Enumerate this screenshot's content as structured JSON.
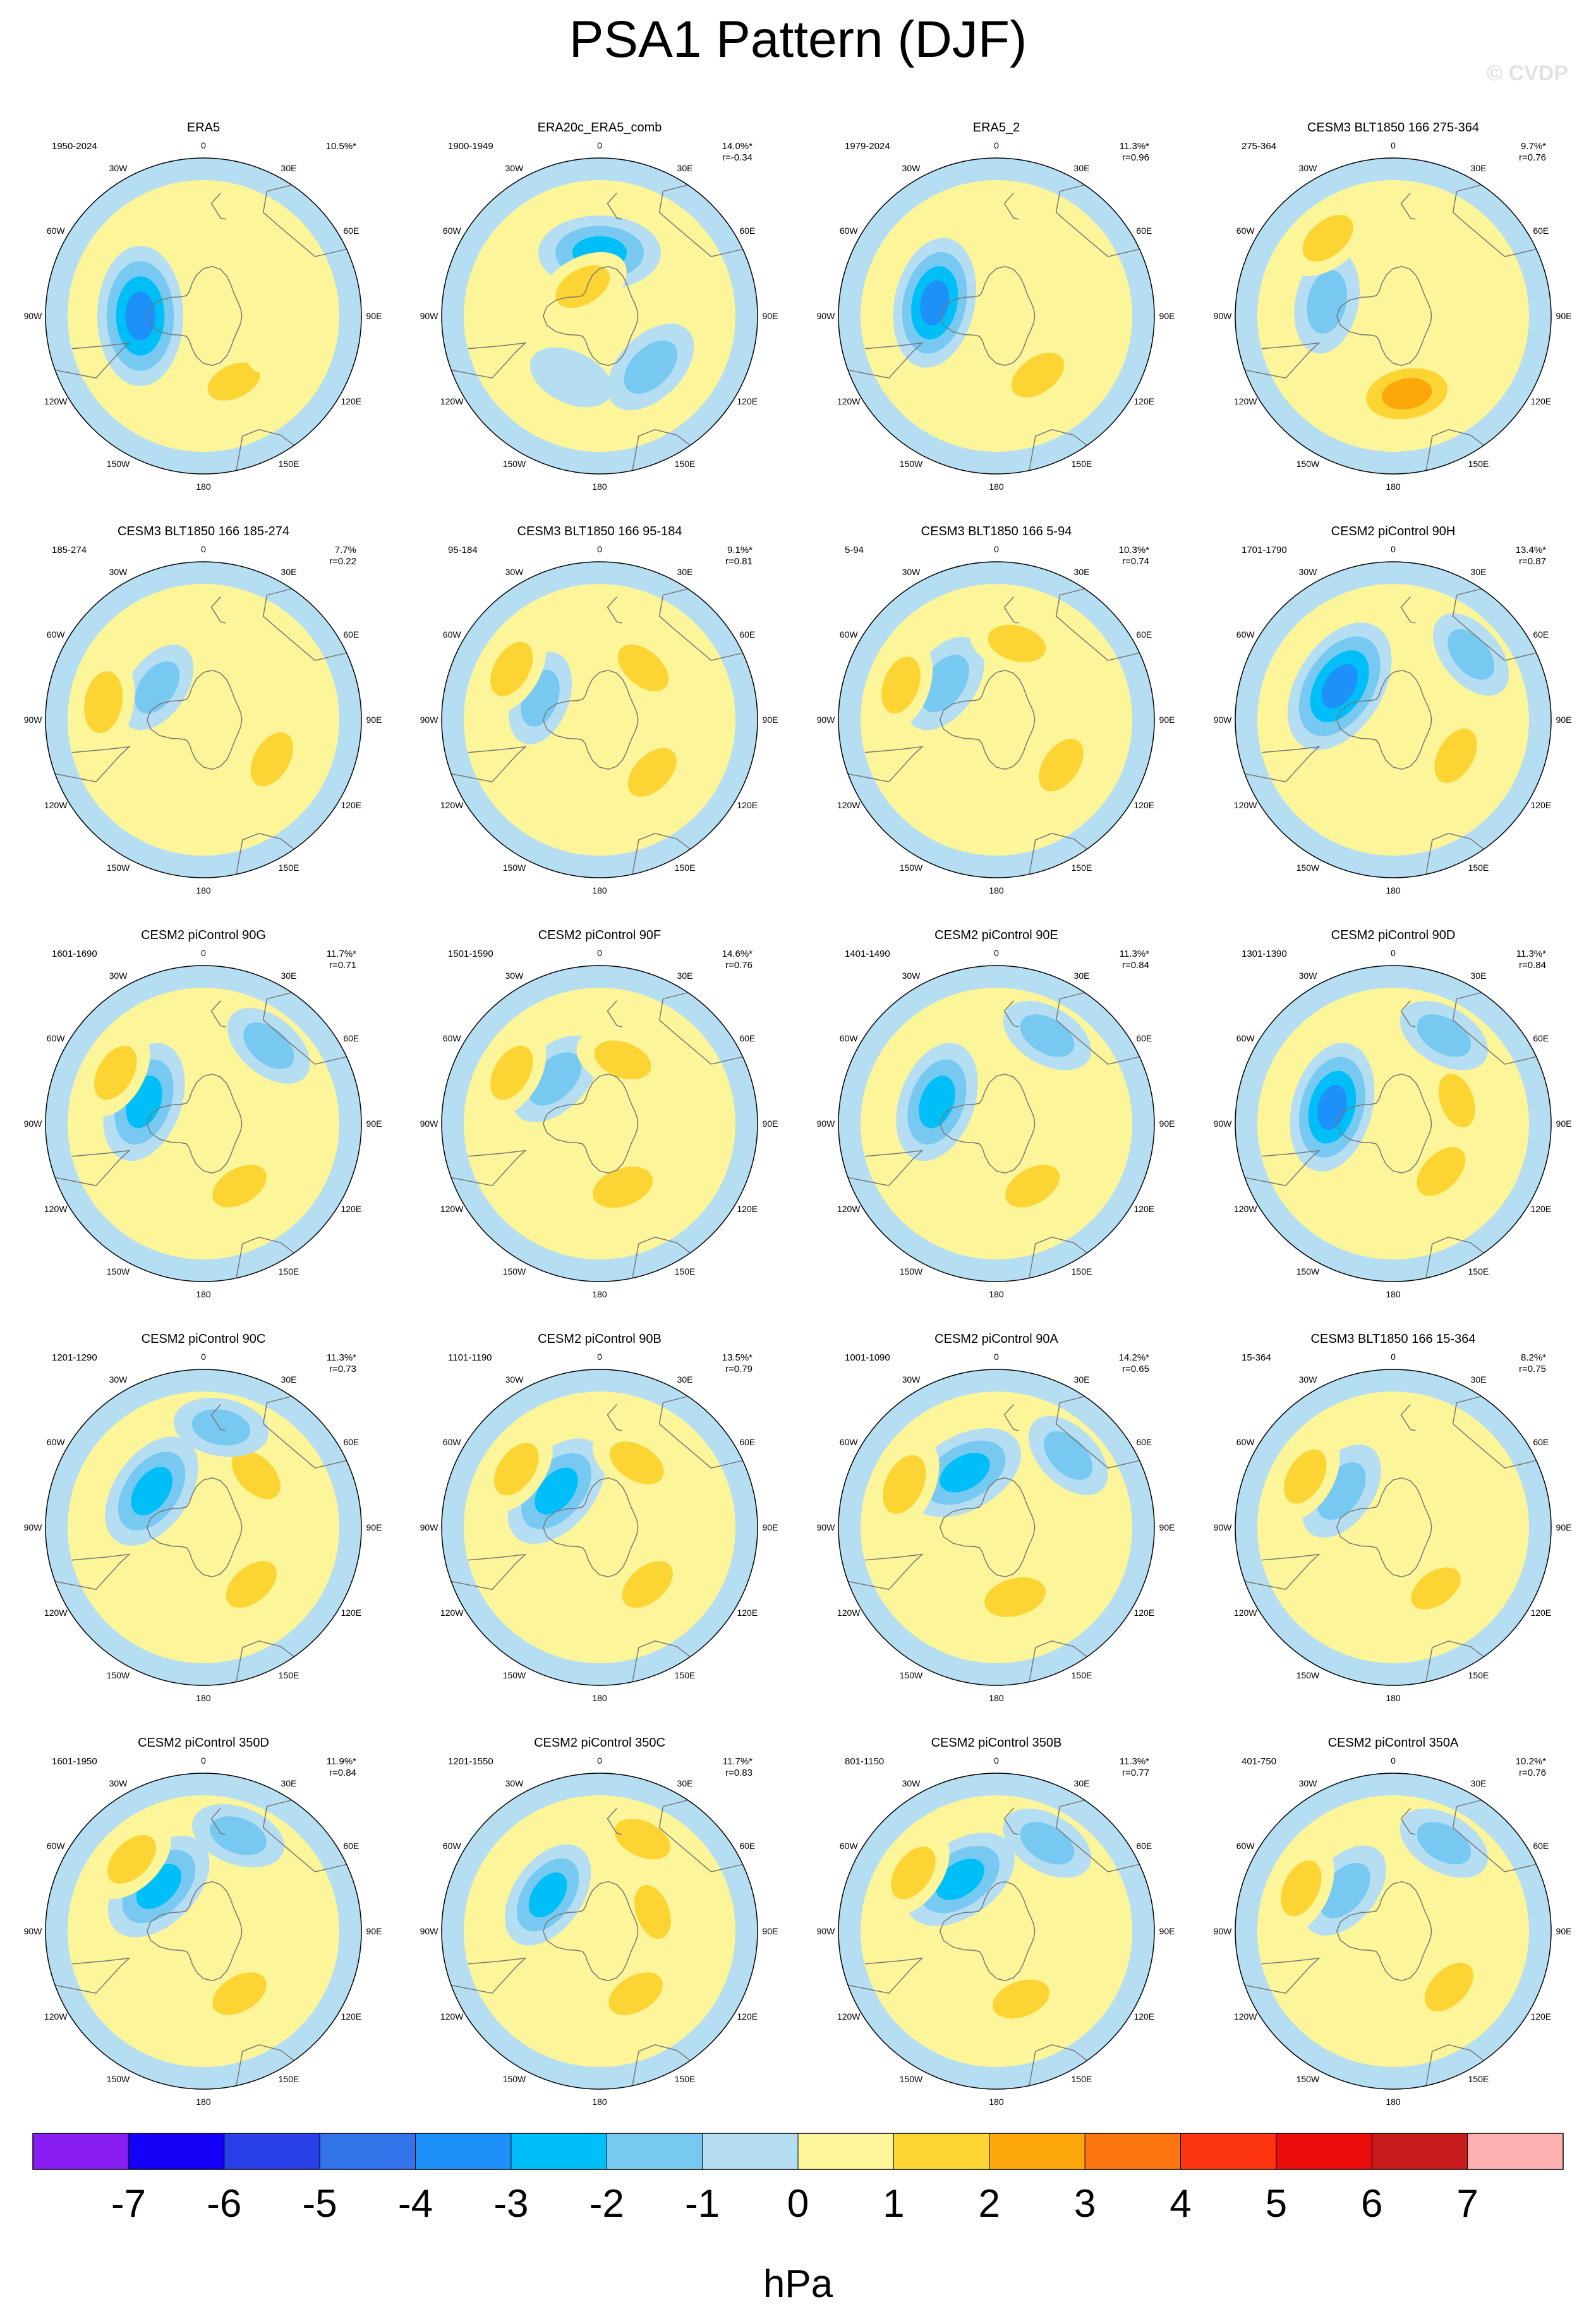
{
  "figure": {
    "title": "PSA1 Pattern (DJF)",
    "watermark": "© CVDP",
    "units": "hPa",
    "land_outline_color": "#777777",
    "label_positions": {
      "left": "start-year label",
      "right": "pattern stats label"
    }
  },
  "colorbar": {
    "levels": [
      -7,
      -6,
      -5,
      -4,
      -3,
      -2,
      -1,
      0,
      1,
      2,
      3,
      4,
      5,
      6,
      7
    ],
    "tick_labels": [
      "-7",
      "-6",
      "-5",
      "-4",
      "-3",
      "-2",
      "-1",
      "0",
      "1",
      "2",
      "3",
      "4",
      "5",
      "6",
      "7"
    ],
    "colors": [
      "#8a1ef2",
      "#1400f5",
      "#2a40e8",
      "#3373ea",
      "#1e90fa",
      "#00bff8",
      "#78c9f2",
      "#b5def2",
      "#fcf59a",
      "#fcd535",
      "#fca70a",
      "#fb7510",
      "#fc340f",
      "#ec0c0c",
      "#c81c1c",
      "#fcb0b0"
    ]
  },
  "lon_labels": [
    "0",
    "30E",
    "60E",
    "90E",
    "120E",
    "150E",
    "180",
    "150W",
    "120W",
    "90W",
    "60W",
    "30W"
  ],
  "chart_data": [
    {
      "type": "heatmap",
      "title": "ERA5",
      "period": "1950-2024",
      "stat_line1": "10.5%*",
      "stat_line2": "",
      "anomalies": [
        {
          "lon": 270,
          "lat": -62,
          "value": -4
        },
        {
          "lon": 25,
          "lat": -58,
          "value": 1.2
        },
        {
          "lon": 75,
          "lat": -60,
          "value": 0.6
        }
      ]
    },
    {
      "type": "heatmap",
      "title": "ERA20c_ERA5_comb",
      "period": "1900-1949",
      "stat_line1": "14.0%*",
      "stat_line2": "r=-0.34",
      "anomalies": [
        {
          "lon": 180,
          "lat": -62,
          "value": -3
        },
        {
          "lon": 45,
          "lat": -58,
          "value": -2
        },
        {
          "lon": 210,
          "lat": -75,
          "value": 1.5
        },
        {
          "lon": 335,
          "lat": -60,
          "value": -1
        }
      ]
    },
    {
      "type": "heatmap",
      "title": "ERA5_2",
      "period": "1979-2024",
      "stat_line1": "11.3%*",
      "stat_line2": "r=0.96",
      "anomalies": [
        {
          "lon": 258,
          "lat": -62,
          "value": -3.5
        },
        {
          "lon": 35,
          "lat": -58,
          "value": 1.5
        },
        {
          "lon": 100,
          "lat": -65,
          "value": 0.8
        }
      ]
    },
    {
      "type": "heatmap",
      "title": "CESM3 BLT1850 166 275-364",
      "period": "275-364",
      "stat_line1": "9.7%*",
      "stat_line2": "r=0.76",
      "anomalies": [
        {
          "lon": 258,
          "lat": -60,
          "value": -2
        },
        {
          "lon": 10,
          "lat": -55,
          "value": 2.5
        },
        {
          "lon": 220,
          "lat": -45,
          "value": 1.5
        }
      ]
    },
    {
      "type": "heatmap",
      "title": "CESM3 BLT1850 166 185-274",
      "period": "185-274",
      "stat_line1": "7.7%",
      "stat_line2": "r=0.22",
      "anomalies": [
        {
          "lon": 235,
          "lat": -65,
          "value": -1.5
        },
        {
          "lon": 60,
          "lat": -55,
          "value": 1.5
        },
        {
          "lon": 260,
          "lat": -45,
          "value": 1.8
        }
      ]
    },
    {
      "type": "heatmap",
      "title": "CESM3 BLT1850 166 95-184",
      "period": "95-184",
      "stat_line1": "9.1%*",
      "stat_line2": "r=0.81",
      "anomalies": [
        {
          "lon": 250,
          "lat": -62,
          "value": -1.5
        },
        {
          "lon": 45,
          "lat": -57,
          "value": 1.5
        },
        {
          "lon": 140,
          "lat": -60,
          "value": 1.5
        },
        {
          "lon": 240,
          "lat": -45,
          "value": 1.5
        }
      ]
    },
    {
      "type": "heatmap",
      "title": "CESM3 BLT1850 166 5-94",
      "period": "5-94",
      "stat_line1": "10.3%*",
      "stat_line2": "r=0.74",
      "anomalies": [
        {
          "lon": 235,
          "lat": -62,
          "value": -2
        },
        {
          "lon": 55,
          "lat": -55,
          "value": 1.5
        },
        {
          "lon": 165,
          "lat": -55,
          "value": 1.5
        },
        {
          "lon": 250,
          "lat": -45,
          "value": 1.5
        }
      ]
    },
    {
      "type": "heatmap",
      "title": "CESM2 piControl 90H",
      "period": "1701-1790",
      "stat_line1": "13.4%*",
      "stat_line2": "r=0.87",
      "anomalies": [
        {
          "lon": 238,
          "lat": -62,
          "value": -4
        },
        {
          "lon": 60,
          "lat": -58,
          "value": 1.5
        },
        {
          "lon": 130,
          "lat": -45,
          "value": -1.5
        }
      ]
    },
    {
      "type": "heatmap",
      "title": "CESM2 piControl 90G",
      "period": "1601-1690",
      "stat_line1": "11.7%*",
      "stat_line2": "r=0.71",
      "anomalies": [
        {
          "lon": 250,
          "lat": -62,
          "value": -3
        },
        {
          "lon": 30,
          "lat": -58,
          "value": 1.5
        },
        {
          "lon": 240,
          "lat": -45,
          "value": 1.5
        },
        {
          "lon": 140,
          "lat": -45,
          "value": -1.5
        }
      ]
    },
    {
      "type": "heatmap",
      "title": "CESM2 piControl 90F",
      "period": "1501-1590",
      "stat_line1": "14.6%*",
      "stat_line2": "r=0.76",
      "anomalies": [
        {
          "lon": 225,
          "lat": -62,
          "value": -2
        },
        {
          "lon": 20,
          "lat": -60,
          "value": 1.8
        },
        {
          "lon": 160,
          "lat": -60,
          "value": 1.5
        },
        {
          "lon": 240,
          "lat": -45,
          "value": 1.5
        }
      ]
    },
    {
      "type": "heatmap",
      "title": "CESM2 piControl 90E",
      "period": "1401-1490",
      "stat_line1": "11.3%*",
      "stat_line2": "r=0.84",
      "anomalies": [
        {
          "lon": 250,
          "lat": -62,
          "value": -3
        },
        {
          "lon": 30,
          "lat": -58,
          "value": 1.5
        },
        {
          "lon": 150,
          "lat": -45,
          "value": -1.5
        }
      ]
    },
    {
      "type": "heatmap",
      "title": "CESM2 piControl 90D",
      "period": "1301-1390",
      "stat_line1": "11.3%*",
      "stat_line2": "r=0.84",
      "anomalies": [
        {
          "lon": 255,
          "lat": -62,
          "value": -3.5
        },
        {
          "lon": 45,
          "lat": -60,
          "value": 1.5
        },
        {
          "lon": 110,
          "lat": -60,
          "value": 1.2
        },
        {
          "lon": 150,
          "lat": -45,
          "value": -1.5
        }
      ]
    },
    {
      "type": "heatmap",
      "title": "CESM2 piControl 90C",
      "period": "1201-1290",
      "stat_line1": "11.3%*",
      "stat_line2": "r=0.73",
      "anomalies": [
        {
          "lon": 235,
          "lat": -62,
          "value": -3
        },
        {
          "lon": 40,
          "lat": -57,
          "value": 1.5
        },
        {
          "lon": 135,
          "lat": -57,
          "value": 1.5
        },
        {
          "lon": 170,
          "lat": -45,
          "value": -1.5
        }
      ]
    },
    {
      "type": "heatmap",
      "title": "CESM2 piControl 90B",
      "period": "1101-1190",
      "stat_line1": "13.5%*",
      "stat_line2": "r=0.79",
      "anomalies": [
        {
          "lon": 230,
          "lat": -65,
          "value": -3
        },
        {
          "lon": 40,
          "lat": -57,
          "value": 1.5
        },
        {
          "lon": 150,
          "lat": -57,
          "value": 1.5
        },
        {
          "lon": 235,
          "lat": -45,
          "value": 1.5
        }
      ]
    },
    {
      "type": "heatmap",
      "title": "CESM2 piControl 90A",
      "period": "1001-1090",
      "stat_line1": "14.2%*",
      "stat_line2": "r=0.65",
      "anomalies": [
        {
          "lon": 210,
          "lat": -62,
          "value": -3
        },
        {
          "lon": 15,
          "lat": -58,
          "value": 1.8
        },
        {
          "lon": 245,
          "lat": -45,
          "value": 1.8
        },
        {
          "lon": 135,
          "lat": -45,
          "value": -1.5
        }
      ]
    },
    {
      "type": "heatmap",
      "title": "CESM3 BLT1850 166 15-364",
      "period": "15-364",
      "stat_line1": "8.2%*",
      "stat_line2": "r=0.75",
      "anomalies": [
        {
          "lon": 235,
          "lat": -62,
          "value": -2
        },
        {
          "lon": 35,
          "lat": -57,
          "value": 1.2
        },
        {
          "lon": 240,
          "lat": -45,
          "value": 1.5
        }
      ]
    },
    {
      "type": "heatmap",
      "title": "CESM2 piControl 350D",
      "period": "1601-1950",
      "stat_line1": "11.9%*",
      "stat_line2": "r=0.84",
      "anomalies": [
        {
          "lon": 225,
          "lat": -62,
          "value": -3
        },
        {
          "lon": 30,
          "lat": -58,
          "value": 1.5
        },
        {
          "lon": 225,
          "lat": -45,
          "value": 1.5
        },
        {
          "lon": 160,
          "lat": -45,
          "value": -1.5
        }
      ]
    },
    {
      "type": "heatmap",
      "title": "CESM2 piControl 350C",
      "period": "1201-1550",
      "stat_line1": "11.7%*",
      "stat_line2": "r=0.83",
      "anomalies": [
        {
          "lon": 235,
          "lat": -62,
          "value": -2.5
        },
        {
          "lon": 30,
          "lat": -58,
          "value": 1.5
        },
        {
          "lon": 155,
          "lat": -45,
          "value": 1.5
        },
        {
          "lon": 110,
          "lat": -65,
          "value": 1.2
        }
      ]
    },
    {
      "type": "heatmap",
      "title": "CESM2 piControl 350B",
      "period": "801-1150",
      "stat_line1": "11.3%*",
      "stat_line2": "r=0.77",
      "anomalies": [
        {
          "lon": 215,
          "lat": -62,
          "value": -3
        },
        {
          "lon": 20,
          "lat": -58,
          "value": 1.5
        },
        {
          "lon": 235,
          "lat": -45,
          "value": 1.5
        },
        {
          "lon": 150,
          "lat": -45,
          "value": -1.5
        }
      ]
    },
    {
      "type": "heatmap",
      "title": "CESM2 piControl 350A",
      "period": "401-750",
      "stat_line1": "10.2%*",
      "stat_line2": "r=0.76",
      "anomalies": [
        {
          "lon": 230,
          "lat": -62,
          "value": -2
        },
        {
          "lon": 45,
          "lat": -55,
          "value": 1.5
        },
        {
          "lon": 245,
          "lat": -45,
          "value": 1.5
        },
        {
          "lon": 150,
          "lat": -45,
          "value": -1.5
        }
      ]
    }
  ]
}
